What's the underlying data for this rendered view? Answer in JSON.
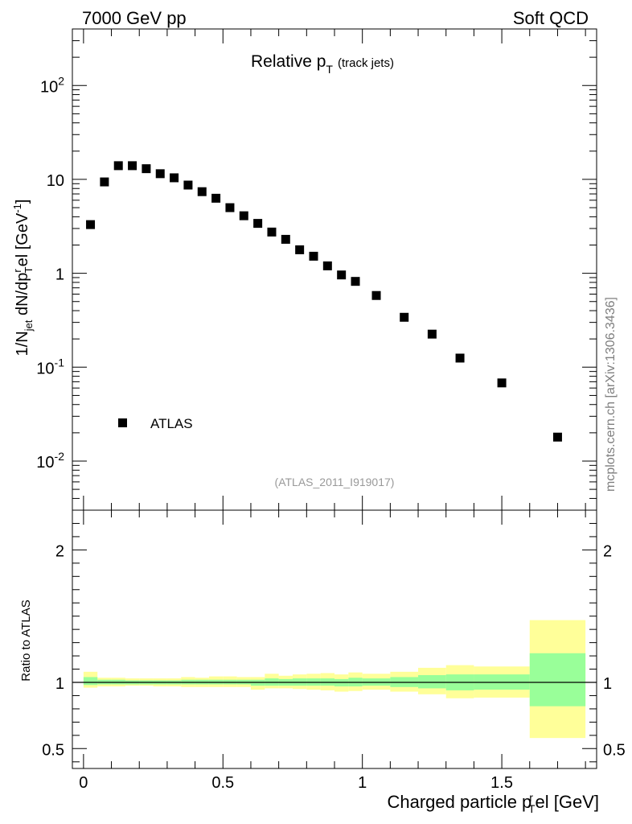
{
  "header": {
    "left": "7000 GeV pp",
    "right": "Soft QCD"
  },
  "side_label": "mcplots.cern.ch [arXiv:1306.3436]",
  "chart_data": [
    {
      "type": "scatter",
      "title_main": "Relative p",
      "title_sub": "T",
      "title_paren": "(track jets)",
      "analysis_id": "(ATLAS_2011_I919017)",
      "ylabel": "1/N_jet dN/dp_T^rel [GeV^-1]",
      "yscale": "log",
      "ylim": [
        0.003,
        400
      ],
      "xlim": [
        -0.04,
        1.84
      ],
      "ytick_labels": [
        {
          "base": "10",
          "exp": "-2",
          "value": 0.01
        },
        {
          "base": "10",
          "exp": "-1",
          "value": 0.1
        },
        {
          "base": "1",
          "exp": "",
          "value": 1
        },
        {
          "base": "10",
          "exp": "",
          "value": 10
        },
        {
          "base": "10",
          "exp": "2",
          "value": 100
        }
      ],
      "legend": {
        "label": "ATLAS",
        "position": "bottom-left"
      },
      "series": [
        {
          "name": "ATLAS",
          "x": [
            0.025,
            0.075,
            0.125,
            0.175,
            0.225,
            0.275,
            0.325,
            0.375,
            0.425,
            0.475,
            0.525,
            0.575,
            0.625,
            0.675,
            0.725,
            0.775,
            0.825,
            0.875,
            0.925,
            0.975,
            1.05,
            1.15,
            1.25,
            1.35,
            1.5,
            1.7
          ],
          "y": [
            3.3,
            9.4,
            14.0,
            14.0,
            13.0,
            11.5,
            10.4,
            8.7,
            7.4,
            6.3,
            5.0,
            4.1,
            3.4,
            2.75,
            2.3,
            1.78,
            1.52,
            1.2,
            0.96,
            0.82,
            0.58,
            0.34,
            0.225,
            0.125,
            0.068,
            0.018
          ]
        }
      ]
    },
    {
      "type": "area",
      "ylabel": "Ratio to ATLAS",
      "xlabel": "Charged particle p_T^rel [GeV]",
      "xlim": [
        -0.04,
        1.84
      ],
      "ylim": [
        0.35,
        2.3
      ],
      "xtick_labels": [
        "0",
        "0.5",
        "1",
        "1.5"
      ],
      "xtick_values": [
        0,
        0.5,
        1,
        1.5
      ],
      "ytick_labels": [
        "0.5",
        "1",
        "2"
      ],
      "ytick_values": [
        0.5,
        1,
        2
      ],
      "reference": 1,
      "bins": [
        {
          "lo": 0.0,
          "hi": 0.05,
          "stat_lo": 0.98,
          "stat_hi": 1.04,
          "tot_lo": 0.96,
          "tot_hi": 1.08
        },
        {
          "lo": 0.05,
          "hi": 0.1,
          "stat_lo": 0.985,
          "stat_hi": 1.02,
          "tot_lo": 0.97,
          "tot_hi": 1.035
        },
        {
          "lo": 0.1,
          "hi": 0.15,
          "stat_lo": 0.985,
          "stat_hi": 1.02,
          "tot_lo": 0.97,
          "tot_hi": 1.035
        },
        {
          "lo": 0.15,
          "hi": 0.2,
          "stat_lo": 0.985,
          "stat_hi": 1.015,
          "tot_lo": 0.975,
          "tot_hi": 1.03
        },
        {
          "lo": 0.2,
          "hi": 0.25,
          "stat_lo": 0.985,
          "stat_hi": 1.015,
          "tot_lo": 0.975,
          "tot_hi": 1.03
        },
        {
          "lo": 0.25,
          "hi": 0.3,
          "stat_lo": 0.985,
          "stat_hi": 1.015,
          "tot_lo": 0.97,
          "tot_hi": 1.03
        },
        {
          "lo": 0.3,
          "hi": 0.35,
          "stat_lo": 0.985,
          "stat_hi": 1.015,
          "tot_lo": 0.97,
          "tot_hi": 1.03
        },
        {
          "lo": 0.35,
          "hi": 0.4,
          "stat_lo": 0.985,
          "stat_hi": 1.02,
          "tot_lo": 0.965,
          "tot_hi": 1.04
        },
        {
          "lo": 0.4,
          "hi": 0.45,
          "stat_lo": 0.985,
          "stat_hi": 1.02,
          "tot_lo": 0.965,
          "tot_hi": 1.035
        },
        {
          "lo": 0.45,
          "hi": 0.5,
          "stat_lo": 0.985,
          "stat_hi": 1.02,
          "tot_lo": 0.965,
          "tot_hi": 1.045
        },
        {
          "lo": 0.5,
          "hi": 0.55,
          "stat_lo": 0.985,
          "stat_hi": 1.02,
          "tot_lo": 0.965,
          "tot_hi": 1.045
        },
        {
          "lo": 0.55,
          "hi": 0.6,
          "stat_lo": 0.985,
          "stat_hi": 1.02,
          "tot_lo": 0.965,
          "tot_hi": 1.04
        },
        {
          "lo": 0.6,
          "hi": 0.65,
          "stat_lo": 0.975,
          "stat_hi": 1.02,
          "tot_lo": 0.945,
          "tot_hi": 1.04
        },
        {
          "lo": 0.65,
          "hi": 0.7,
          "stat_lo": 0.975,
          "stat_hi": 1.03,
          "tot_lo": 0.955,
          "tot_hi": 1.065
        },
        {
          "lo": 0.7,
          "hi": 0.75,
          "stat_lo": 0.975,
          "stat_hi": 1.025,
          "tot_lo": 0.955,
          "tot_hi": 1.05
        },
        {
          "lo": 0.75,
          "hi": 0.8,
          "stat_lo": 0.975,
          "stat_hi": 1.03,
          "tot_lo": 0.95,
          "tot_hi": 1.06
        },
        {
          "lo": 0.8,
          "hi": 0.85,
          "stat_lo": 0.975,
          "stat_hi": 1.03,
          "tot_lo": 0.945,
          "tot_hi": 1.065
        },
        {
          "lo": 0.85,
          "hi": 0.9,
          "stat_lo": 0.975,
          "stat_hi": 1.03,
          "tot_lo": 0.94,
          "tot_hi": 1.07
        },
        {
          "lo": 0.9,
          "hi": 0.95,
          "stat_lo": 0.97,
          "stat_hi": 1.025,
          "tot_lo": 0.93,
          "tot_hi": 1.06
        },
        {
          "lo": 0.95,
          "hi": 1.0,
          "stat_lo": 0.97,
          "stat_hi": 1.035,
          "tot_lo": 0.935,
          "tot_hi": 1.075
        },
        {
          "lo": 1.0,
          "hi": 1.1,
          "stat_lo": 0.975,
          "stat_hi": 1.03,
          "tot_lo": 0.945,
          "tot_hi": 1.065
        },
        {
          "lo": 1.1,
          "hi": 1.2,
          "stat_lo": 0.965,
          "stat_hi": 1.04,
          "tot_lo": 0.93,
          "tot_hi": 1.08
        },
        {
          "lo": 1.2,
          "hi": 1.3,
          "stat_lo": 0.955,
          "stat_hi": 1.055,
          "tot_lo": 0.91,
          "tot_hi": 1.11
        },
        {
          "lo": 1.3,
          "hi": 1.4,
          "stat_lo": 0.94,
          "stat_hi": 1.06,
          "tot_lo": 0.88,
          "tot_hi": 1.13
        },
        {
          "lo": 1.4,
          "hi": 1.6,
          "stat_lo": 0.945,
          "stat_hi": 1.06,
          "tot_lo": 0.885,
          "tot_hi": 1.12
        },
        {
          "lo": 1.6,
          "hi": 1.8,
          "stat_lo": 0.82,
          "stat_hi": 1.22,
          "tot_lo": 0.58,
          "tot_hi": 1.47
        }
      ]
    }
  ],
  "colors": {
    "stat_band": "#99ff99",
    "total_band": "#ffff99",
    "marker": "#000000",
    "analysis_id": "#999999",
    "side_label": "#7f7f7f"
  }
}
